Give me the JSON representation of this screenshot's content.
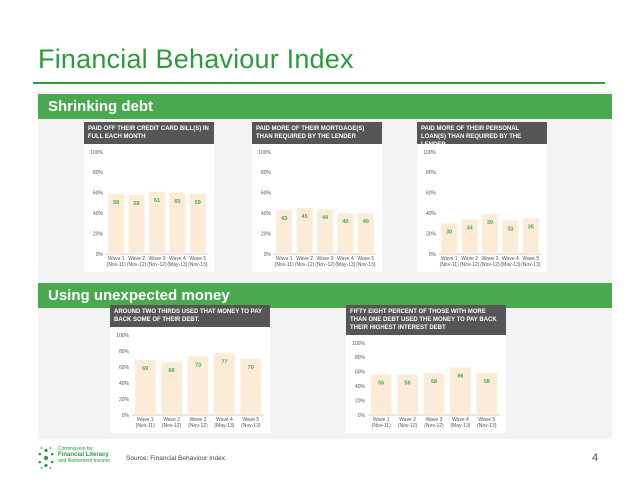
{
  "slide": {
    "title": "Financial Behaviour Index",
    "source": "Source: Financial Behaviour Index",
    "page_number": "4",
    "logo": {
      "line1": "Commission for",
      "line2": "Financial Literacy",
      "line3": "and Retirement Income"
    }
  },
  "sections": [
    {
      "label": "Shrinking debt"
    },
    {
      "label": "Using unexpected money"
    }
  ],
  "colors": {
    "accent": "#2d9a3f",
    "band": "#4aa84f",
    "bar": "#fbebd7",
    "header": "#565656"
  },
  "chart_data": [
    {
      "type": "bar",
      "title": "PAID OFF THEIR CREDIT CARD BILL(S) IN FULL EACH MONTH",
      "categories": [
        [
          "Wave 1",
          "(Nov-11)"
        ],
        [
          "Wave 2",
          "(Nov-12)"
        ],
        [
          "Wave 3",
          "(Nov-12)"
        ],
        [
          "Wave 4",
          "(May-13)"
        ],
        [
          "Wave 5",
          "(Nov-13)"
        ]
      ],
      "values": [
        59,
        58,
        61,
        60,
        59
      ],
      "yticks": [
        "0%",
        "20%",
        "40%",
        "60%",
        "80%",
        "100%"
      ],
      "ylim": [
        0,
        100
      ]
    },
    {
      "type": "bar",
      "title": "PAID MORE OF THEIR MORTGAGE(S) THAN REQUIRED BY THE LENDER",
      "categories": [
        [
          "Wave 1",
          "(Nov-11)"
        ],
        [
          "Wave 2",
          "(Nov-12)"
        ],
        [
          "Wave 3",
          "(Nov-12)"
        ],
        [
          "Wave 4",
          "(May-13)"
        ],
        [
          "Wave 5",
          "(Nov-13)"
        ]
      ],
      "values": [
        43,
        45,
        44,
        40,
        40
      ],
      "yticks": [
        "0%",
        "20%",
        "40%",
        "60%",
        "80%",
        "100%"
      ],
      "ylim": [
        0,
        100
      ]
    },
    {
      "type": "bar",
      "title": "PAID MORE OF THEIR PERSONAL LOAN(S) THAN REQUIRED BY THE LENDER",
      "categories": [
        [
          "Wave 1",
          "(Nov-11)"
        ],
        [
          "Wave 2",
          "(Nov-12)"
        ],
        [
          "Wave 3",
          "(Nov-12)"
        ],
        [
          "Wave 4",
          "(May-13)"
        ],
        [
          "Wave 5",
          "(Nov-13)"
        ]
      ],
      "values": [
        30,
        34,
        39,
        33,
        35
      ],
      "yticks": [
        "0%",
        "20%",
        "40%",
        "60%",
        "80%",
        "100%"
      ],
      "ylim": [
        0,
        100
      ]
    },
    {
      "type": "bar",
      "title": "AROUND TWO THIRDS USED THAT MONEY TO PAY BACK SOME OF THEIR DEBT.",
      "categories": [
        [
          "Wave 1",
          "(Nov-11)"
        ],
        [
          "Wave 2",
          "(Nov-12)"
        ],
        [
          "Wave 3",
          "(Nov-12)"
        ],
        [
          "Wave 4",
          "(May-13)"
        ],
        [
          "Wave 5",
          "(Nov-13)"
        ]
      ],
      "values": [
        69,
        66,
        73,
        77,
        70
      ],
      "yticks": [
        "0%",
        "20%",
        "40%",
        "60%",
        "80%",
        "100%"
      ],
      "ylim": [
        0,
        100
      ]
    },
    {
      "type": "bar",
      "title": "FIFTY EIGHT PERCENT OF THOSE WITH MORE THAN ONE DEBT USED THE MONEY TO PAY BACK THEIR HIGHEST INTEREST DEBT",
      "categories": [
        [
          "Wave 1",
          "(Nov-11)"
        ],
        [
          "Wave 2",
          "(Nov-12)"
        ],
        [
          "Wave 3",
          "(Nov-12)"
        ],
        [
          "Wave 4",
          "(May-13)"
        ],
        [
          "Wave 5",
          "(Nov-13)"
        ]
      ],
      "values": [
        56,
        56,
        58,
        66,
        58
      ],
      "yticks": [
        "0%",
        "20%",
        "40%",
        "60%",
        "80%",
        "100%"
      ],
      "ylim": [
        0,
        100
      ]
    }
  ]
}
